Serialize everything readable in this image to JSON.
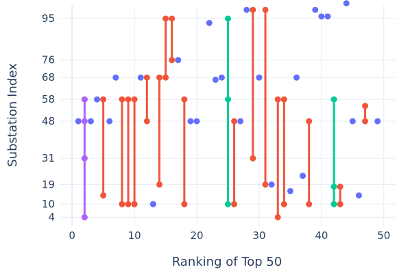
{
  "chart_data": {
    "type": "scatter",
    "title": "",
    "xlabel": "Ranking of Top 50",
    "ylabel": "Substation Index",
    "xlim": [
      -2,
      52
    ],
    "ylim": [
      0,
      101
    ],
    "x_ticks": [
      0,
      10,
      20,
      30,
      40,
      50
    ],
    "y_ticks": [
      4,
      10,
      19,
      31,
      48,
      58,
      68,
      76,
      95
    ],
    "grid": true,
    "legend": "none",
    "colors": {
      "points": "#636efa",
      "red": "#ef553b",
      "green": "#00cc96",
      "purple": "#ab63fa",
      "grid": "#e5ecf6",
      "text": "#2a3f5f"
    },
    "points": [
      {
        "x": 1,
        "y": 48
      },
      {
        "x": 3,
        "y": 48
      },
      {
        "x": 4,
        "y": 58
      },
      {
        "x": 6,
        "y": 48
      },
      {
        "x": 7,
        "y": 68
      },
      {
        "x": 11,
        "y": 68
      },
      {
        "x": 13,
        "y": 10
      },
      {
        "x": 17,
        "y": 76
      },
      {
        "x": 19,
        "y": 48
      },
      {
        "x": 20,
        "y": 48
      },
      {
        "x": 22,
        "y": 93
      },
      {
        "x": 23,
        "y": 67
      },
      {
        "x": 24,
        "y": 68
      },
      {
        "x": 27,
        "y": 48
      },
      {
        "x": 28,
        "y": 99
      },
      {
        "x": 30,
        "y": 68
      },
      {
        "x": 32,
        "y": 19
      },
      {
        "x": 35,
        "y": 16
      },
      {
        "x": 36,
        "y": 68
      },
      {
        "x": 37,
        "y": 23
      },
      {
        "x": 39,
        "y": 99
      },
      {
        "x": 40,
        "y": 96
      },
      {
        "x": 41,
        "y": 96
      },
      {
        "x": 44,
        "y": 102
      },
      {
        "x": 45,
        "y": 48
      },
      {
        "x": 46,
        "y": 14
      },
      {
        "x": 49,
        "y": 48
      }
    ],
    "series": [
      {
        "color": "purple",
        "x": 2,
        "values": [
          4,
          31,
          48,
          58
        ]
      },
      {
        "color": "red",
        "x": 5,
        "values": [
          14,
          58
        ]
      },
      {
        "color": "red",
        "x": 8,
        "values": [
          10,
          58
        ]
      },
      {
        "color": "red",
        "x": 9,
        "values": [
          10,
          58
        ]
      },
      {
        "color": "red",
        "x": 10,
        "values": [
          10,
          58
        ]
      },
      {
        "color": "red",
        "x": 12,
        "values": [
          48,
          68
        ]
      },
      {
        "color": "red",
        "x": 14,
        "values": [
          19,
          68
        ]
      },
      {
        "color": "red",
        "x": 15,
        "values": [
          68,
          95
        ]
      },
      {
        "color": "red",
        "x": 16,
        "values": [
          76,
          95
        ]
      },
      {
        "color": "red",
        "x": 18,
        "values": [
          10,
          58
        ]
      },
      {
        "color": "green",
        "x": 25,
        "values": [
          10,
          58,
          95
        ]
      },
      {
        "color": "red",
        "x": 26,
        "values": [
          10,
          48
        ]
      },
      {
        "color": "red",
        "x": 29,
        "values": [
          31,
          99
        ]
      },
      {
        "color": "red",
        "x": 31,
        "values": [
          19,
          99
        ]
      },
      {
        "color": "red",
        "x": 33,
        "values": [
          4,
          58
        ]
      },
      {
        "color": "red",
        "x": 34,
        "values": [
          10,
          58
        ]
      },
      {
        "color": "red",
        "x": 38,
        "values": [
          10,
          48
        ]
      },
      {
        "color": "green",
        "x": 42,
        "values": [
          10,
          18,
          58
        ]
      },
      {
        "color": "red",
        "x": 43,
        "values": [
          10,
          18
        ]
      },
      {
        "color": "red",
        "x": 47,
        "values": [
          48,
          55
        ]
      }
    ]
  }
}
